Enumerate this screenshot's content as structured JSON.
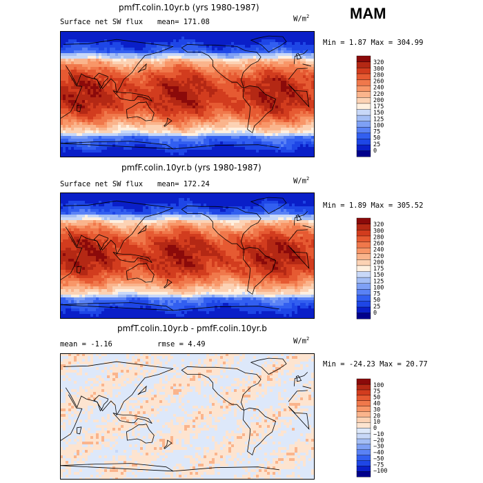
{
  "season": "MAM",
  "panels": [
    {
      "title": "pmfT.colin.10yr.b (yrs 1980-1987)",
      "left_label": "Surface net SW flux",
      "stat_label": "mean= 171.08",
      "units": "W/m",
      "units_exp": "2",
      "minmax": "Min =   1.87 Max = 304.99",
      "kind": "abs",
      "seed": 11
    },
    {
      "title": "pmfF.colin.10yr.b (yrs 1980-1987)",
      "left_label": "Surface net SW flux",
      "stat_label": "mean= 172.24",
      "units": "W/m",
      "units_exp": "2",
      "minmax": "Min =   1.89 Max = 305.52",
      "kind": "abs",
      "seed": 23
    },
    {
      "title": "pmfT.colin.10yr.b - pmfF.colin.10yr.b",
      "left_label": "mean =  -1.16",
      "stat_label": "rmse =   4.49",
      "units": "W/m",
      "units_exp": "2",
      "minmax": "Min = -24.23 Max =  20.77",
      "kind": "diff",
      "seed": 37
    }
  ],
  "colors": {
    "abs": [
      "#00008b",
      "#0a1fc8",
      "#1e46e6",
      "#325ff0",
      "#5a82f5",
      "#7ea0f5",
      "#a4bef5",
      "#c8d8f8",
      "#fff0e0",
      "#fcd2b4",
      "#fab48c",
      "#f89668",
      "#f0784b",
      "#e65a32",
      "#d23c1e",
      "#b42814",
      "#8b0a0a"
    ],
    "diff": [
      "#00008b",
      "#0a1fc8",
      "#1e46e6",
      "#325ff0",
      "#5a82f5",
      "#7ea0f5",
      "#a4bef5",
      "#c8d8f8",
      "#dde8fa",
      "#fde4d0",
      "#fcd2b4",
      "#fab48c",
      "#f89668",
      "#f0784b",
      "#e65a32",
      "#d23c1e",
      "#b42814",
      "#8b0a0a"
    ]
  },
  "chart_data": [
    {
      "type": "heatmap",
      "title": "pmfT.colin.10yr.b (yrs 1980-1987)",
      "variable": "Surface net SW flux",
      "units": "W/m^2",
      "mean": 171.08,
      "min": 1.87,
      "max": 304.99,
      "colorbar_levels": [
        "0",
        "25",
        "50",
        "75",
        "100",
        "125",
        "150",
        "175",
        "200",
        "220",
        "240",
        "260",
        "280",
        "300",
        "320"
      ]
    },
    {
      "type": "heatmap",
      "title": "pmfF.colin.10yr.b (yrs 1980-1987)",
      "variable": "Surface net SW flux",
      "units": "W/m^2",
      "mean": 172.24,
      "min": 1.89,
      "max": 305.52,
      "colorbar_levels": [
        "0",
        "25",
        "50",
        "75",
        "100",
        "125",
        "150",
        "175",
        "200",
        "220",
        "240",
        "260",
        "280",
        "300",
        "320"
      ]
    },
    {
      "type": "heatmap",
      "title": "pmfT.colin.10yr.b - pmfF.colin.10yr.b",
      "units": "W/m^2",
      "mean": -1.16,
      "rmse": 4.49,
      "min": -24.23,
      "max": 20.77,
      "colorbar_levels": [
        "−100",
        "−75",
        "−50",
        "−40",
        "−30",
        "−20",
        "−10",
        "0",
        "10",
        "20",
        "30",
        "40",
        "50",
        "75",
        "100"
      ]
    }
  ]
}
